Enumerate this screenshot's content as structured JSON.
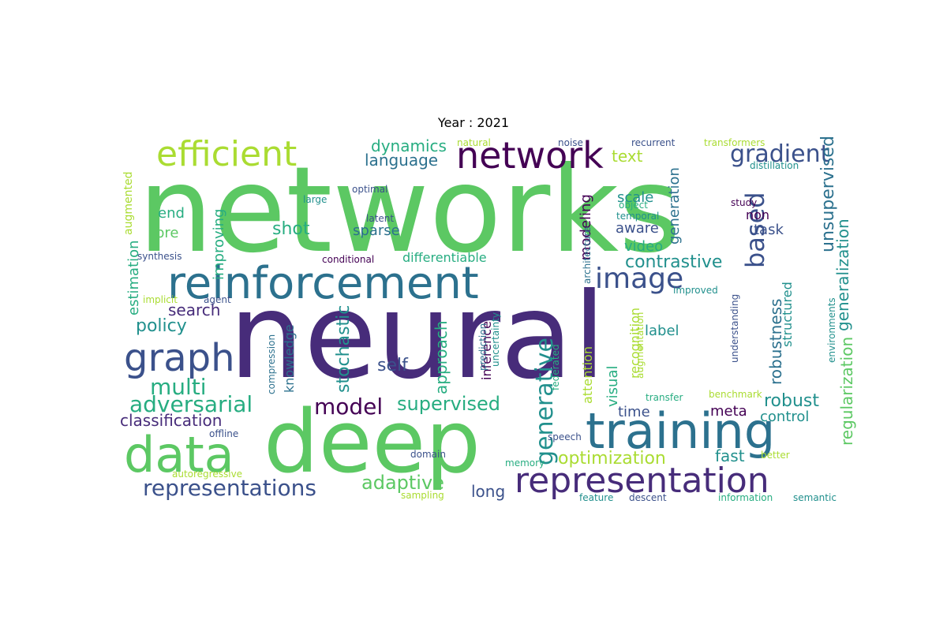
{
  "figure": {
    "title": "Year : 2021"
  },
  "palette": {
    "deep_purple": "#440154",
    "purple": "#472c7a",
    "indigo": "#3b518b",
    "blue": "#2c718e",
    "teal": "#21908d",
    "green_teal": "#27ad81",
    "green": "#5cc863",
    "lime": "#aadc32",
    "yellow": "#fde725"
  },
  "words": [
    "networks",
    "neural",
    "deep",
    "training",
    "reinforcement",
    "representation",
    "data",
    "network",
    "efficient",
    "graph",
    "image",
    "representations",
    "adversarial",
    "gradient",
    "based",
    "multi",
    "generative",
    "model",
    "supervised",
    "optimization",
    "robust",
    "unsupervised",
    "contrastive",
    "policy",
    "classification",
    "adaptive",
    "self",
    "stochastic",
    "generalization",
    "regularization",
    "dynamics",
    "language",
    "robustness",
    "long",
    "search",
    "approach",
    "fast",
    "shot",
    "meta",
    "control",
    "time",
    "visual",
    "label",
    "end",
    "pre",
    "improving",
    "task",
    "text",
    "video",
    "scale",
    "aware",
    "modeling",
    "generation",
    "estimation",
    "sparse",
    "differentiable",
    "inference",
    "knowledge",
    "recognition",
    "structured",
    "attention",
    "non",
    "augmented",
    "compression",
    "prediction",
    "uncertainty",
    "federated",
    "transfer",
    "benchmark",
    "speech",
    "domain",
    "memory",
    "better",
    "sampling",
    "autoregressive",
    "offline",
    "synthesis",
    "implicit",
    "agent",
    "conditional",
    "latent",
    "large",
    "optimal",
    "natural",
    "noise",
    "recurrent",
    "transformers",
    "distillation",
    "study",
    "object",
    "temporal",
    "architecture",
    "improved",
    "understanding",
    "environments",
    "augmentation",
    "feature",
    "descent",
    "information",
    "semantic"
  ]
}
